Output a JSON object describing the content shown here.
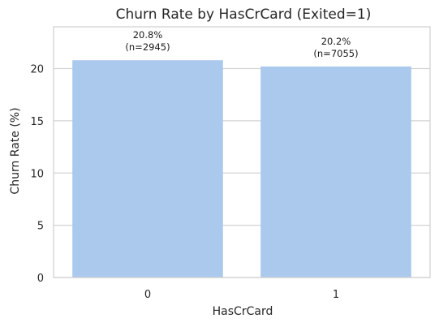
{
  "chart_data": {
    "type": "bar",
    "title": "Churn Rate by HasCrCard (Exited=1)",
    "xlabel": "HasCrCard",
    "ylabel": "Churn Rate (%)",
    "categories": [
      "0",
      "1"
    ],
    "values": [
      20.8,
      20.2
    ],
    "data_labels": [
      {
        "rate": "20.8%",
        "count": "(n=2945)"
      },
      {
        "rate": "20.2%",
        "count": "(n=7055)"
      }
    ],
    "yticks": [
      0,
      5,
      10,
      15,
      20
    ],
    "ylim": [
      0,
      24
    ],
    "grid": "horizontal",
    "bar_color": "#abc9ed",
    "grid_color": "#d4d4d4",
    "frame_color": "#cfcfcf"
  }
}
